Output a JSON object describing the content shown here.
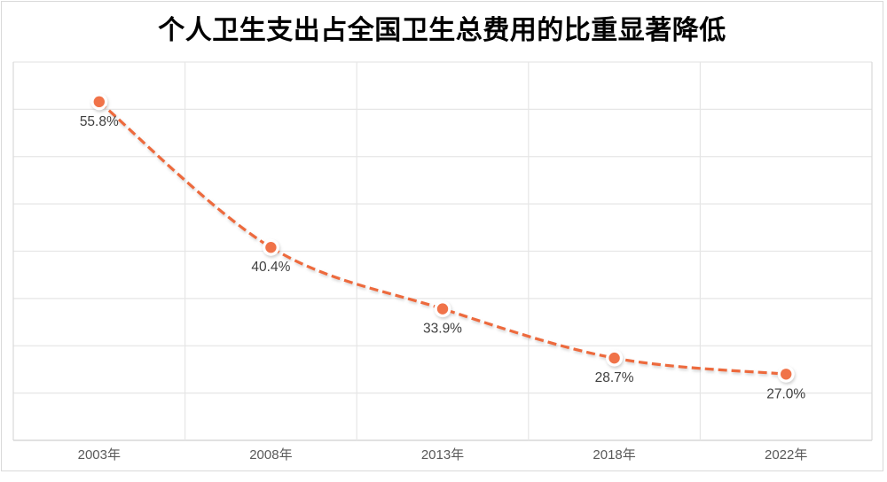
{
  "chart_data": {
    "type": "line",
    "title": "个人卫生支出占全国卫生总费用的比重显著降低",
    "categories": [
      "2003年",
      "2008年",
      "2013年",
      "2018年",
      "2022年"
    ],
    "values": [
      55.8,
      40.4,
      33.9,
      28.7,
      27.0
    ],
    "data_labels": [
      "55.8%",
      "40.4%",
      "33.9%",
      "28.7%",
      "27.0%"
    ],
    "xlabel": "",
    "ylabel": "",
    "ylim": [
      20,
      60
    ],
    "y_gridline_step": 5,
    "grid": true,
    "legend": "none",
    "line_style": "dashed",
    "smooth": true,
    "marker": "circle-with-white-ring"
  },
  "colors": {
    "accent_line": "#ed6a3c",
    "marker_fill": "#f0734a",
    "marker_ring": "#ffffff",
    "gridline": "#e6e6e6",
    "plot_border": "#d9d9d9",
    "axis_line": "#cfcfcf",
    "data_label": "#3f3f3f",
    "axis_label": "#595959",
    "card_border": "#d9d9d9",
    "title_color": "#000000",
    "background": "#ffffff"
  }
}
